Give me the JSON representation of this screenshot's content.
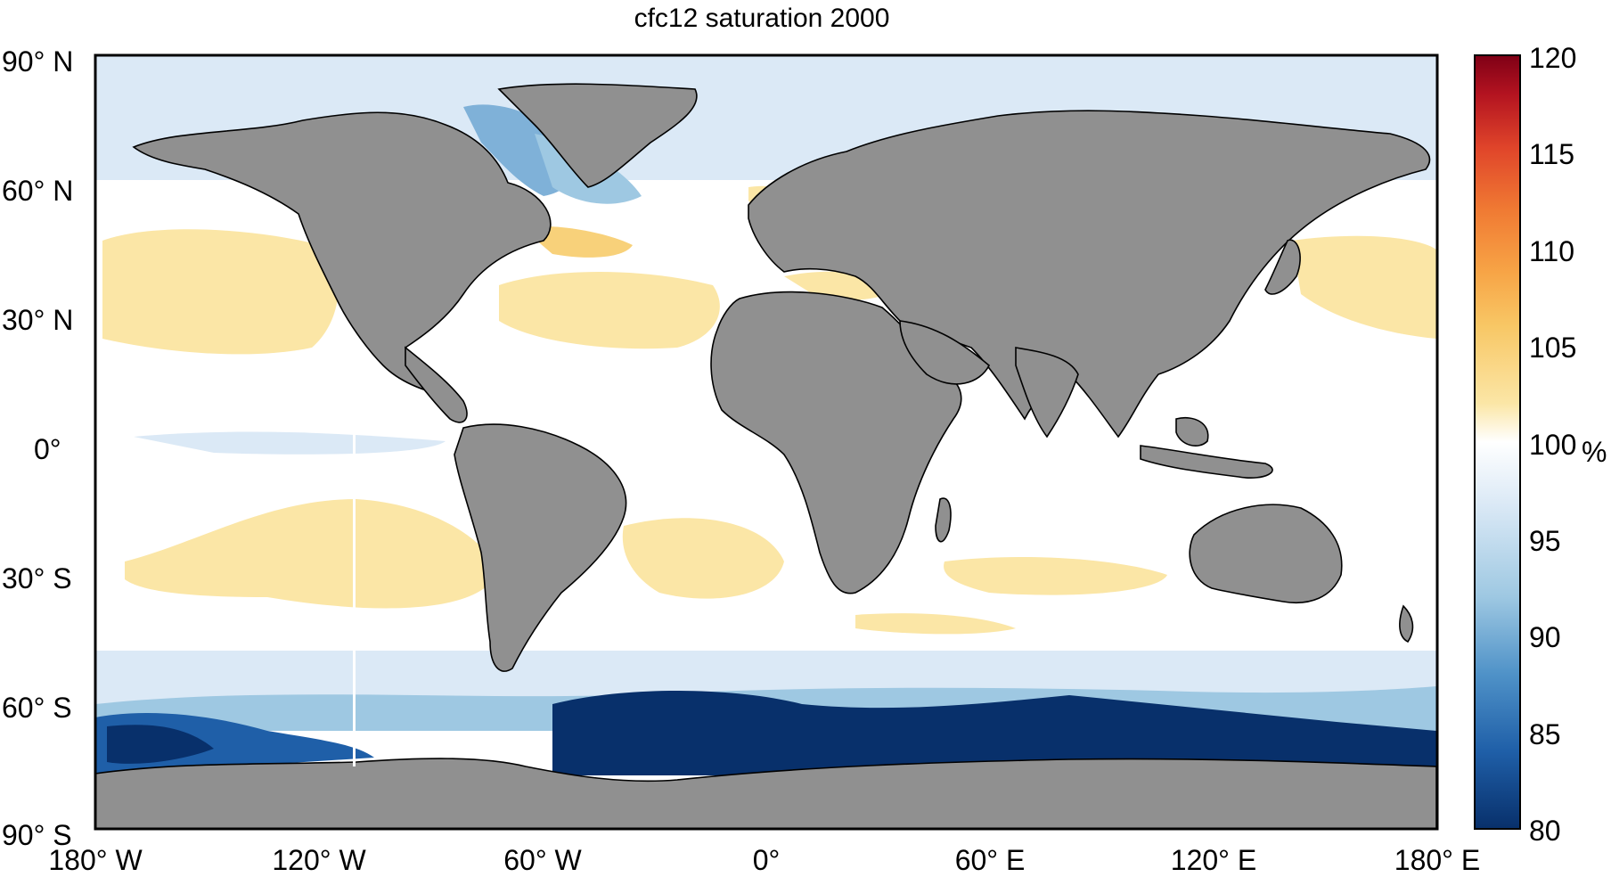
{
  "figure": {
    "title": "cfc12 saturation 2000"
  },
  "axes": {
    "x_ticks": [
      "180° W",
      "120° W",
      "60° W",
      "0°",
      "60° E",
      "120° E",
      "180° E"
    ],
    "y_ticks": [
      "90° N",
      "60° N",
      "30° N",
      "0°",
      "30° S",
      "60° S",
      "90° S"
    ],
    "lon_range": [
      -180,
      180
    ],
    "lat_range": [
      -90,
      90
    ]
  },
  "colorbar": {
    "ticks": [
      "80",
      "85",
      "90",
      "95",
      "100",
      "105",
      "110",
      "115",
      "120"
    ],
    "range": [
      80,
      120
    ],
    "unit": "%",
    "colors": [
      "#08306b",
      "#1f5fa8",
      "#4f92c8",
      "#9ec8e2",
      "#dbe9f6",
      "#ffffff",
      "#fbe6a6",
      "#f8c765",
      "#f7a446",
      "#f07a33",
      "#e0452a",
      "#b31320",
      "#7f0016"
    ]
  },
  "colors": {
    "land": "#909090",
    "coastline": "#000000",
    "ocean_neutral": "#ffffff"
  }
}
